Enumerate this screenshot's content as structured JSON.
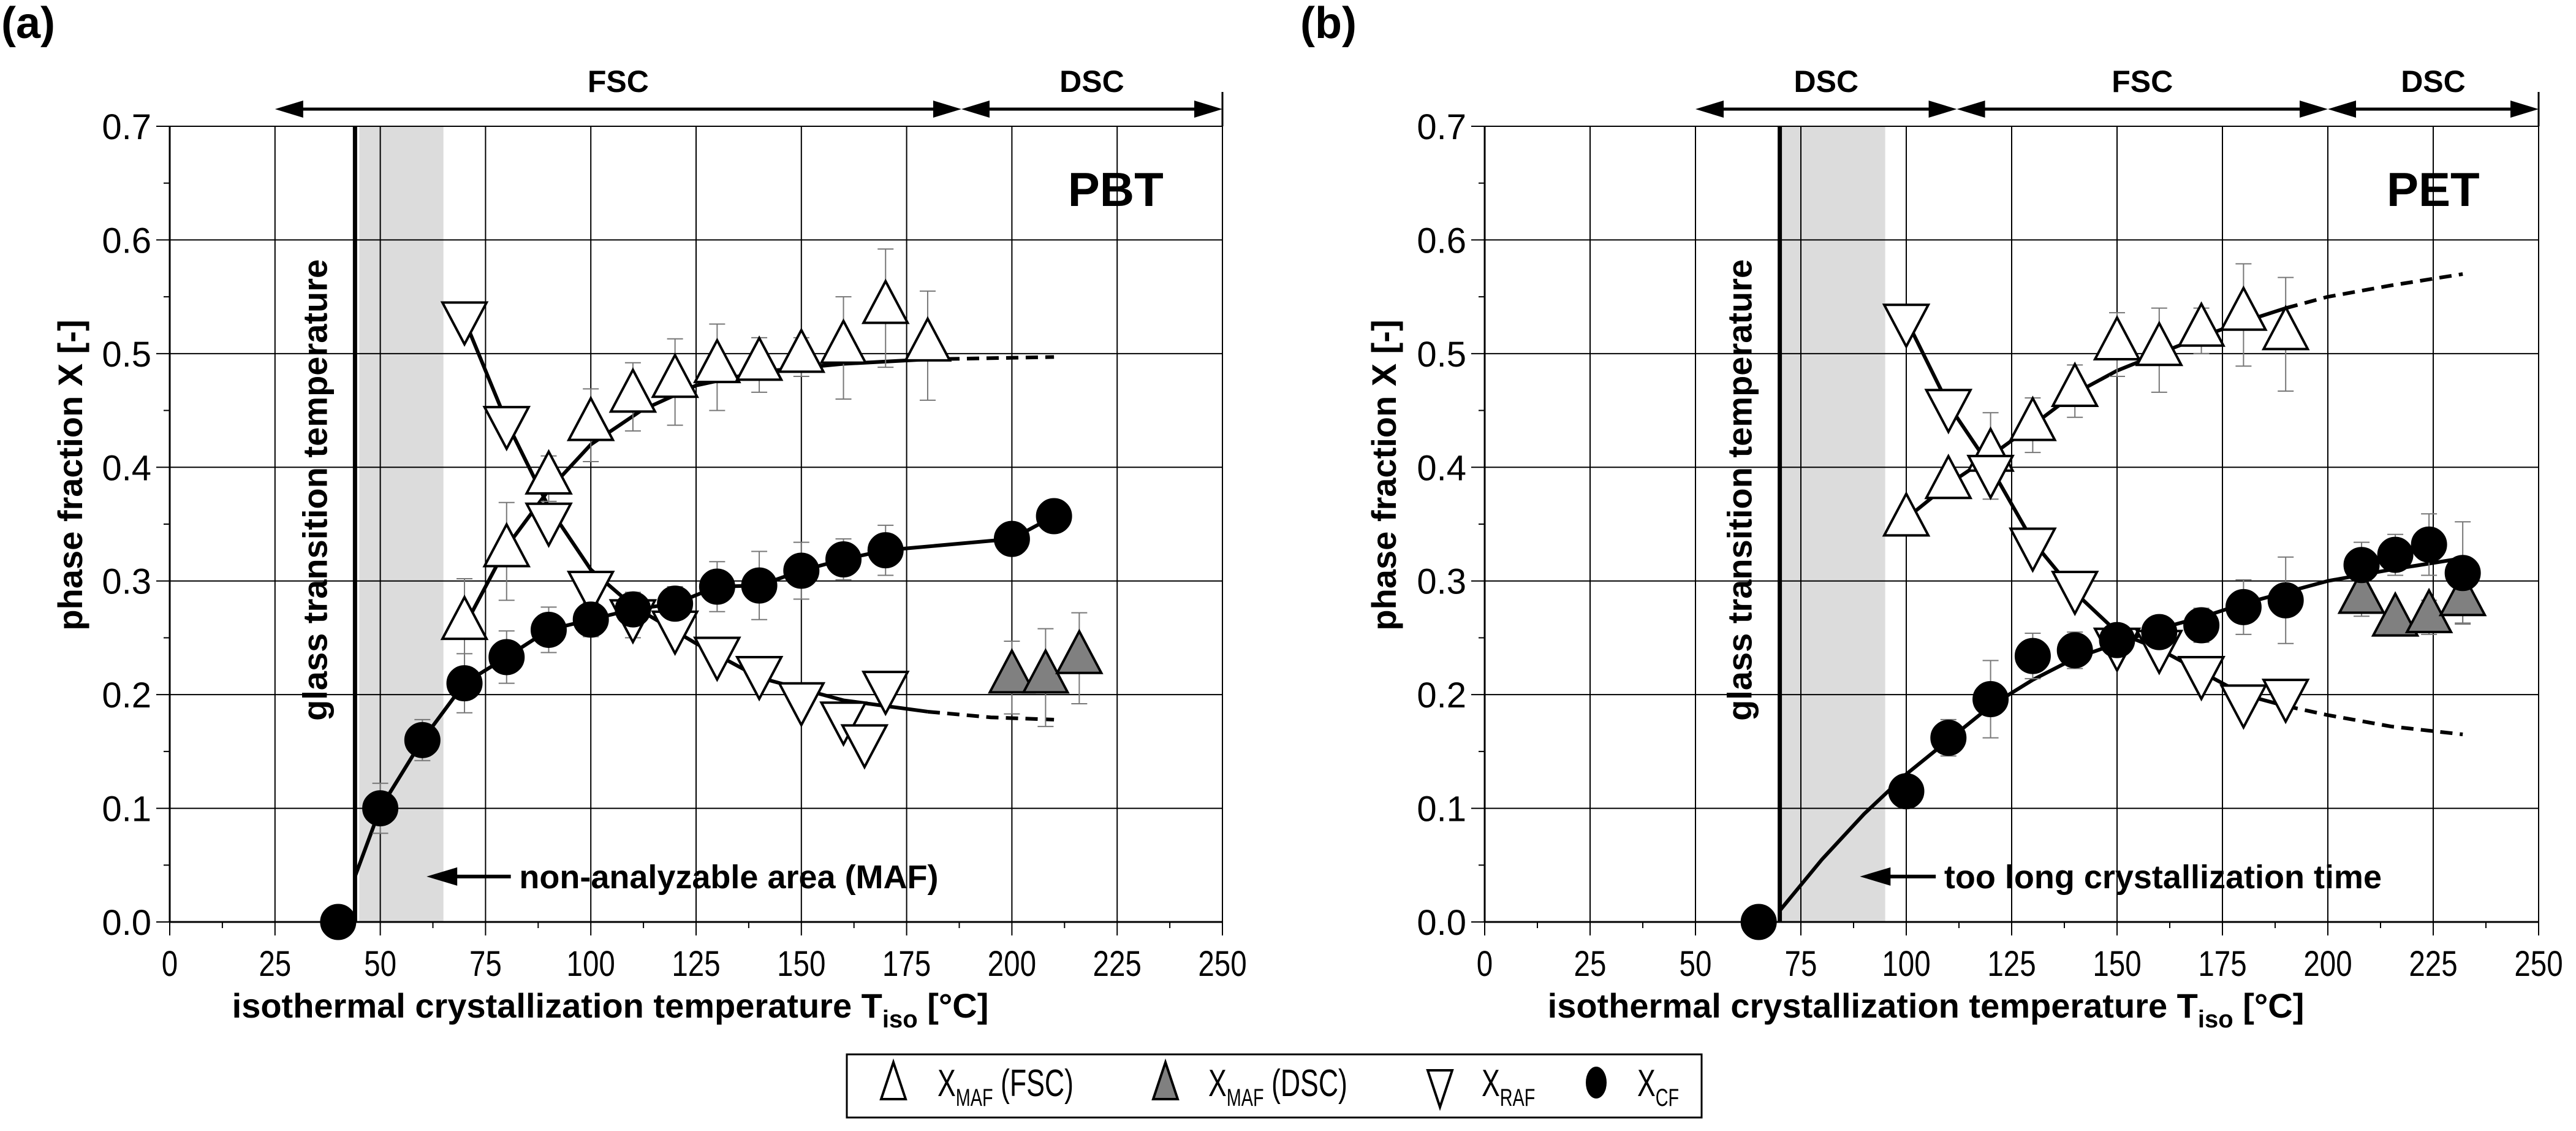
{
  "chart_data": [
    {
      "type": "scatter",
      "panel_label": "(a)",
      "material": "PBT",
      "xlabel_main": "isothermal crystallization temperature T",
      "xlabel_sub": "iso",
      "xlabel_unit": " [°C]",
      "ylabel": "phase fraction X [-]",
      "xlim": [
        0,
        250
      ],
      "ylim": [
        0,
        0.7
      ],
      "xticks": [
        "0",
        "25",
        "50",
        "75",
        "100",
        "125",
        "150",
        "175",
        "200",
        "225",
        "250"
      ],
      "yticks": [
        "0.0",
        "0.1",
        "0.2",
        "0.3",
        "0.4",
        "0.5",
        "0.6",
        "0.7"
      ],
      "grid": true,
      "method_ranges": [
        {
          "label": "FSC",
          "from": 25,
          "to": 188
        },
        {
          "label": "DSC",
          "from": 188,
          "to": 250
        }
      ],
      "glass_transition": {
        "x": 44,
        "label": "glass transition temperature"
      },
      "shaded_region": {
        "from": 45,
        "to": 65,
        "label": "non-analyzable area (MAF)"
      },
      "series": [
        {
          "name": "X_MAF (FSC)",
          "marker": "triangle-up",
          "fill": "#ffffff",
          "x": [
            70,
            80,
            90,
            100,
            110,
            120,
            130,
            140,
            150,
            160,
            170,
            180
          ],
          "y": [
            0.262,
            0.326,
            0.39,
            0.437,
            0.462,
            0.475,
            0.488,
            0.49,
            0.497,
            0.505,
            0.54,
            0.507
          ],
          "err": [
            0.04,
            0.043,
            0.02,
            0.032,
            0.03,
            0.038,
            0.038,
            0.024,
            0.017,
            0.045,
            0.052,
            0.048
          ]
        },
        {
          "name": "X_MAF (DSC)",
          "marker": "triangle-up",
          "fill": "#808080",
          "x": [
            200,
            208,
            216
          ],
          "y": [
            0.215,
            0.215,
            0.232
          ],
          "err": [
            0.032,
            0.043,
            0.04
          ]
        },
        {
          "name": "X_RAF",
          "marker": "triangle-down",
          "fill": "#ffffff",
          "x": [
            70,
            80,
            90,
            100,
            110,
            120,
            130,
            140,
            150,
            160,
            165,
            170
          ],
          "y": [
            0.532,
            0.44,
            0.355,
            0.295,
            0.27,
            0.26,
            0.237,
            0.22,
            0.197,
            0.18,
            0.16,
            0.207
          ],
          "err": [
            0,
            0,
            0,
            0,
            0.02,
            0,
            0,
            0,
            0,
            0,
            0,
            0
          ]
        },
        {
          "name": "X_CF",
          "marker": "circle",
          "fill": "#000000",
          "x": [
            40,
            50,
            60,
            70,
            80,
            90,
            100,
            110,
            120,
            130,
            140,
            150,
            160,
            170,
            200,
            210
          ],
          "y": [
            0.0,
            0.1,
            0.16,
            0.21,
            0.233,
            0.257,
            0.266,
            0.275,
            0.28,
            0.295,
            0.296,
            0.309,
            0.319,
            0.327,
            0.337,
            0.357
          ],
          "err": [
            0,
            0.022,
            0.018,
            0.026,
            0.023,
            0.02,
            0.015,
            0.012,
            0.015,
            0.022,
            0.03,
            0.025,
            0.018,
            0.022,
            0,
            0
          ]
        }
      ],
      "fits": [
        {
          "name": "MAF fit",
          "x": [
            70,
            80,
            90,
            100,
            112,
            125,
            140,
            160,
            180
          ],
          "y": [
            0.26,
            0.33,
            0.38,
            0.42,
            0.45,
            0.472,
            0.484,
            0.491,
            0.495
          ]
        },
        {
          "name": "MAF extrapolation",
          "dashed": true,
          "x": [
            180,
            195,
            210
          ],
          "y": [
            0.495,
            0.496,
            0.497
          ]
        },
        {
          "name": "RAF fit",
          "x": [
            70,
            80,
            90,
            100,
            110,
            125,
            140,
            160,
            180
          ],
          "y": [
            0.53,
            0.44,
            0.365,
            0.31,
            0.278,
            0.245,
            0.215,
            0.195,
            0.185
          ]
        },
        {
          "name": "RAF extrapolation",
          "dashed": true,
          "x": [
            180,
            195,
            210
          ],
          "y": [
            0.185,
            0.18,
            0.178
          ]
        },
        {
          "name": "CF fit",
          "x": [
            44,
            50,
            60,
            70,
            80,
            90,
            100,
            110,
            120,
            130,
            140,
            150,
            160,
            170,
            200,
            210
          ],
          "y": [
            0.04,
            0.1,
            0.16,
            0.21,
            0.233,
            0.257,
            0.266,
            0.275,
            0.28,
            0.295,
            0.296,
            0.309,
            0.319,
            0.327,
            0.337,
            0.357
          ]
        }
      ]
    },
    {
      "type": "scatter",
      "panel_label": "(b)",
      "material": "PET",
      "xlabel_main": "isothermal crystallization temperature T",
      "xlabel_sub": "iso",
      "xlabel_unit": " [°C]",
      "ylabel": "phase fraction X [-]",
      "xlim": [
        0,
        250
      ],
      "ylim": [
        0,
        0.7
      ],
      "xticks": [
        "0",
        "25",
        "50",
        "75",
        "100",
        "125",
        "150",
        "175",
        "200",
        "225",
        "250"
      ],
      "yticks": [
        "0.0",
        "0.1",
        "0.2",
        "0.3",
        "0.4",
        "0.5",
        "0.6",
        "0.7"
      ],
      "grid": true,
      "method_ranges": [
        {
          "label": "DSC",
          "from": 50,
          "to": 112
        },
        {
          "label": "FSC",
          "from": 112,
          "to": 200
        },
        {
          "label": "DSC",
          "from": 200,
          "to": 250
        }
      ],
      "glass_transition": {
        "x": 70,
        "label": "glass transition temperature"
      },
      "shaded_region": {
        "from": 70,
        "to": 95,
        "label": "too long crystallization time"
      },
      "series": [
        {
          "name": "X_MAF (FSC)",
          "marker": "triangle-up",
          "fill": "#ffffff",
          "x": [
            100,
            110,
            120,
            130,
            140,
            150,
            160,
            170,
            180,
            190
          ],
          "y": [
            0.353,
            0.386,
            0.41,
            0.437,
            0.467,
            0.508,
            0.503,
            0.52,
            0.534,
            0.517
          ],
          "err": [
            0,
            0,
            0.038,
            0.024,
            0.023,
            0.028,
            0.037,
            0.02,
            0.045,
            0.05
          ]
        },
        {
          "name": "X_MAF (DSC)",
          "marker": "triangle-up",
          "fill": "#808080",
          "x": [
            208,
            216,
            224,
            232
          ],
          "y": [
            0.285,
            0.265,
            0.268,
            0.283
          ],
          "err": [
            0.016,
            0.012,
            0.015,
            0.02
          ]
        },
        {
          "name": "X_RAF",
          "marker": "triangle-down",
          "fill": "#ffffff",
          "x": [
            100,
            110,
            120,
            130,
            140,
            150,
            160,
            170,
            180,
            190
          ],
          "y": [
            0.53,
            0.455,
            0.397,
            0.333,
            0.295,
            0.245,
            0.243,
            0.22,
            0.195,
            0.2
          ],
          "err": [
            0,
            0,
            0,
            0,
            0,
            0,
            0,
            0,
            0,
            0
          ]
        },
        {
          "name": "X_CF",
          "marker": "circle",
          "fill": "#000000",
          "x": [
            65,
            100,
            110,
            120,
            130,
            140,
            150,
            160,
            170,
            180,
            190,
            208,
            216,
            224,
            232
          ],
          "y": [
            0.0,
            0.115,
            0.162,
            0.196,
            0.234,
            0.239,
            0.248,
            0.255,
            0.261,
            0.277,
            0.283,
            0.314,
            0.323,
            0.332,
            0.307
          ],
          "err": [
            0,
            0,
            0.016,
            0.034,
            0.02,
            0.016,
            0.012,
            0.01,
            0.015,
            0.024,
            0.038,
            0.02,
            0.018,
            0.027,
            0.045
          ]
        }
      ],
      "fits": [
        {
          "name": "MAF fit",
          "x": [
            100,
            110,
            120,
            130,
            140,
            150,
            160,
            170,
            180,
            190
          ],
          "y": [
            0.355,
            0.385,
            0.41,
            0.437,
            0.465,
            0.485,
            0.5,
            0.515,
            0.528,
            0.54
          ]
        },
        {
          "name": "MAF extrapolation",
          "dashed": true,
          "x": [
            190,
            200,
            215,
            232
          ],
          "y": [
            0.54,
            0.55,
            0.56,
            0.57
          ]
        },
        {
          "name": "RAF fit",
          "x": [
            100,
            110,
            120,
            130,
            140,
            150,
            160,
            170,
            180,
            190
          ],
          "y": [
            0.53,
            0.455,
            0.4,
            0.335,
            0.29,
            0.255,
            0.24,
            0.22,
            0.2,
            0.19
          ]
        },
        {
          "name": "RAF extrapolation",
          "dashed": true,
          "x": [
            190,
            200,
            215,
            232
          ],
          "y": [
            0.19,
            0.182,
            0.172,
            0.165
          ]
        },
        {
          "name": "CF fit",
          "x": [
            70,
            80,
            90,
            100,
            110,
            120,
            130,
            140,
            150,
            160,
            170,
            180,
            190,
            200,
            215,
            232
          ],
          "y": [
            0.01,
            0.055,
            0.095,
            0.13,
            0.16,
            0.19,
            0.213,
            0.232,
            0.245,
            0.258,
            0.268,
            0.28,
            0.29,
            0.3,
            0.31,
            0.32
          ]
        }
      ]
    }
  ],
  "legend": {
    "items": [
      {
        "main": "X",
        "sub": "MAF",
        "suffix": " (FSC)"
      },
      {
        "main": "X",
        "sub": "MAF",
        "suffix": " (DSC)"
      },
      {
        "main": "X",
        "sub": "RAF",
        "suffix": ""
      },
      {
        "main": "X",
        "sub": "CF",
        "suffix": ""
      }
    ]
  }
}
